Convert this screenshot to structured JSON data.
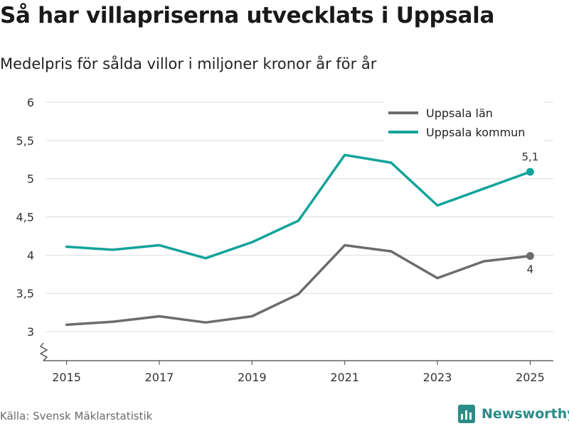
{
  "title": "Så har villapriserna utvecklats i Uppsala",
  "subtitle": "Medelpris för sålda villor i miljoner kronor år för år",
  "source": "Källa: Svensk Mäklarstatistik",
  "brand": "Newsworthy",
  "colors": {
    "lan": "#6d6b70",
    "kommun": "#12a39a",
    "grid": "#dddddd",
    "axis": "#444444"
  },
  "chart_data": {
    "type": "line",
    "x": [
      2015,
      2016,
      2017,
      2018,
      2019,
      2020,
      2021,
      2022,
      2023,
      2024,
      2025
    ],
    "x_ticks": [
      2015,
      2017,
      2019,
      2021,
      2023,
      2025
    ],
    "x_tick_labels": [
      "2015",
      "2017",
      "2019",
      "2021",
      "2023",
      "2025"
    ],
    "y_ticks": [
      3,
      3.5,
      4,
      4.5,
      5,
      5.5,
      6
    ],
    "y_tick_labels": [
      "3",
      "3,5",
      "4",
      "4,5",
      "5",
      "5,5",
      "6"
    ],
    "ylim": [
      2.62,
      6
    ],
    "xlim": [
      2014.5,
      2025.5
    ],
    "grid": true,
    "axis_break": true,
    "legend_position": "top-right",
    "series": [
      {
        "name": "Uppsala län",
        "key": "lan",
        "values": [
          3.09,
          3.13,
          3.2,
          3.12,
          3.2,
          3.49,
          4.13,
          4.05,
          3.7,
          3.92,
          3.99
        ],
        "end_label": "4"
      },
      {
        "name": "Uppsala kommun",
        "key": "kommun",
        "values": [
          4.11,
          4.07,
          4.13,
          3.96,
          4.17,
          4.45,
          5.31,
          5.21,
          4.65,
          4.87,
          5.09
        ],
        "end_label": "5,1"
      }
    ]
  }
}
